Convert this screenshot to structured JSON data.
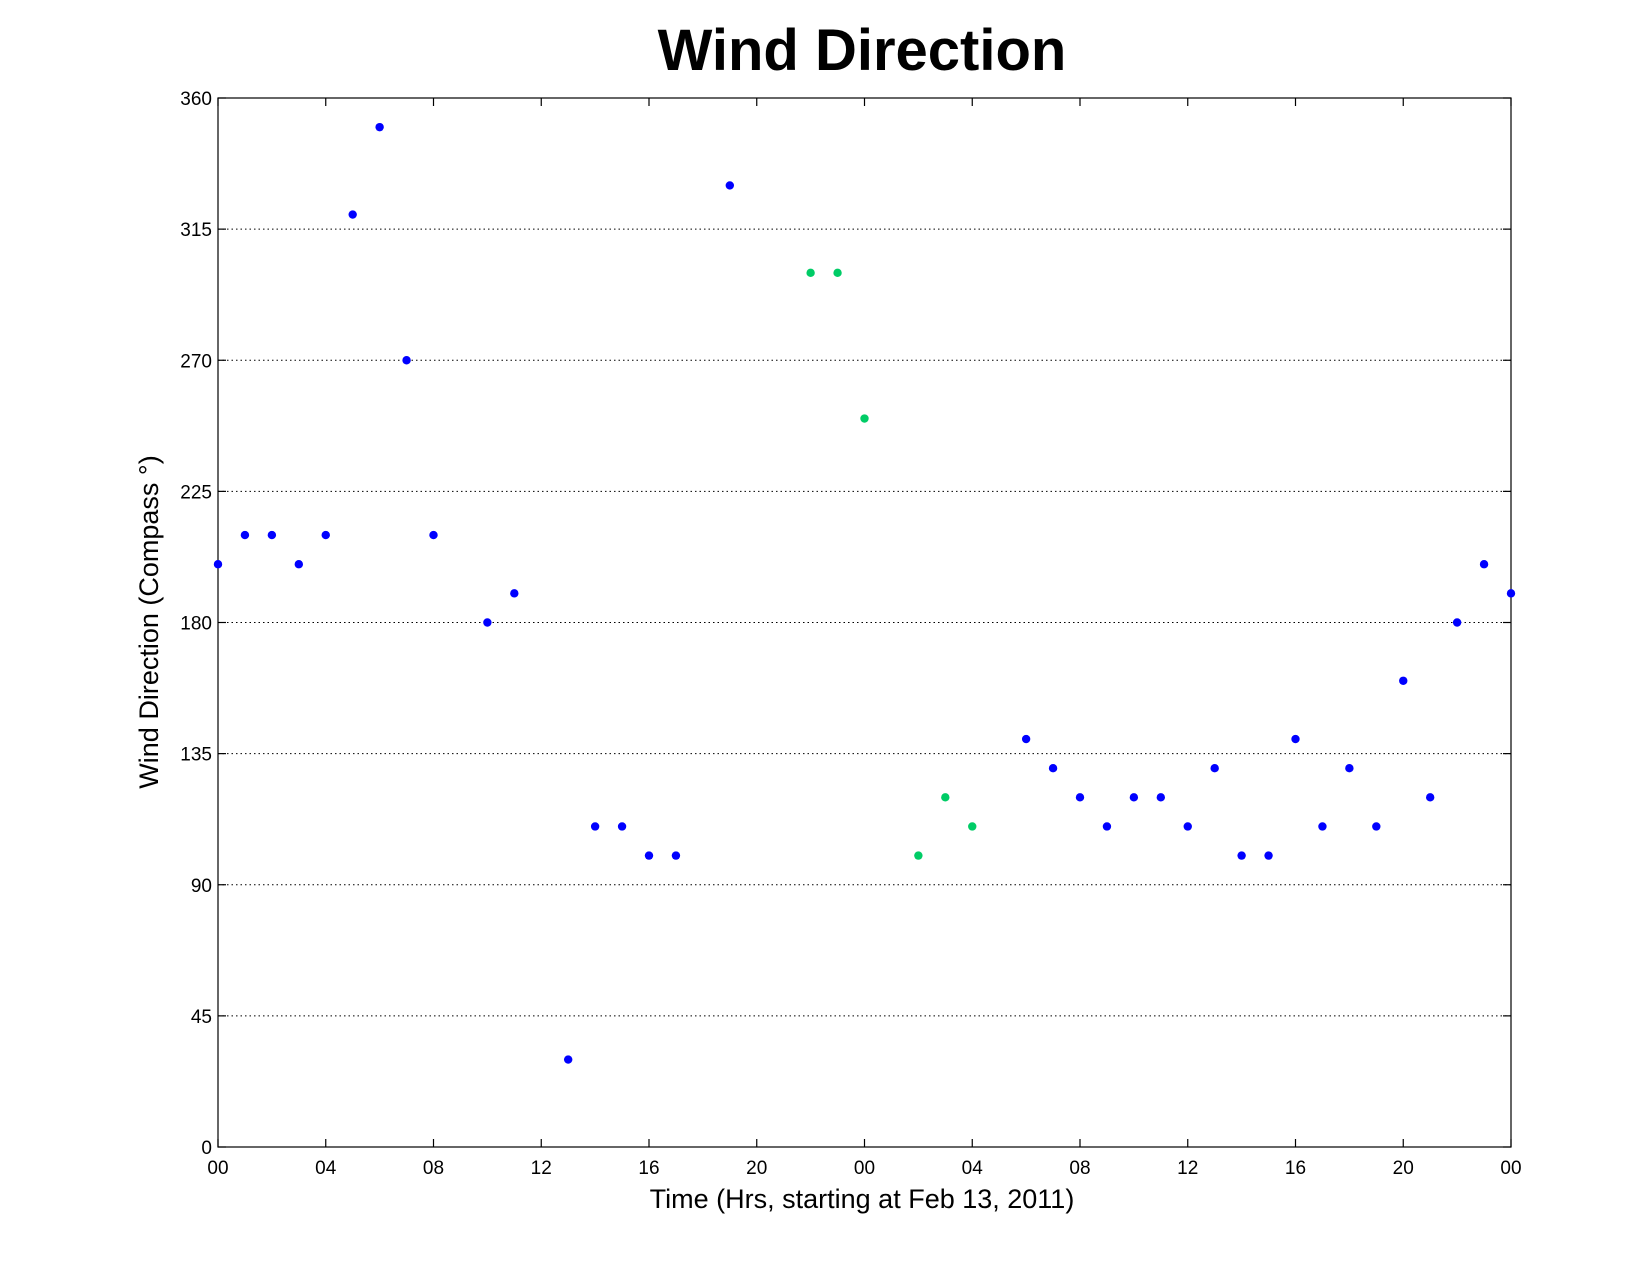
{
  "chart_data": {
    "type": "scatter",
    "title": "Wind Direction",
    "xlabel": "Time (Hrs, starting at Feb 13, 2011)",
    "ylabel": "Wind Direction (Compass  °)",
    "xlim": [
      0,
      48
    ],
    "ylim": [
      0,
      360
    ],
    "x_ticks": [
      {
        "value": 0,
        "label": "00"
      },
      {
        "value": 4,
        "label": "04"
      },
      {
        "value": 8,
        "label": "08"
      },
      {
        "value": 12,
        "label": "12"
      },
      {
        "value": 16,
        "label": "16"
      },
      {
        "value": 20,
        "label": "20"
      },
      {
        "value": 24,
        "label": "00"
      },
      {
        "value": 28,
        "label": "04"
      },
      {
        "value": 32,
        "label": "08"
      },
      {
        "value": 36,
        "label": "12"
      },
      {
        "value": 40,
        "label": "16"
      },
      {
        "value": 44,
        "label": "20"
      },
      {
        "value": 48,
        "label": "00"
      }
    ],
    "y_ticks": [
      0,
      45,
      90,
      135,
      180,
      225,
      270,
      315,
      360
    ],
    "grid": "horizontal dotted",
    "series": [
      {
        "color": "#0000ff",
        "points": [
          [
            0,
            200
          ],
          [
            1,
            210
          ],
          [
            2,
            210
          ],
          [
            3,
            200
          ],
          [
            4,
            210
          ],
          [
            5,
            320
          ],
          [
            6,
            350
          ],
          [
            7,
            270
          ],
          [
            8,
            210
          ],
          [
            10,
            180
          ],
          [
            11,
            190
          ],
          [
            13,
            30
          ],
          [
            14,
            110
          ],
          [
            15,
            110
          ],
          [
            16,
            100
          ],
          [
            17,
            100
          ],
          [
            19,
            330
          ],
          [
            30,
            140
          ],
          [
            31,
            130
          ],
          [
            32,
            120
          ],
          [
            33,
            110
          ],
          [
            34,
            120
          ],
          [
            35,
            120
          ],
          [
            36,
            110
          ],
          [
            37,
            130
          ],
          [
            38,
            100
          ],
          [
            39,
            100
          ],
          [
            40,
            140
          ],
          [
            41,
            110
          ],
          [
            42,
            130
          ],
          [
            43,
            110
          ],
          [
            44,
            160
          ],
          [
            45,
            120
          ],
          [
            46,
            180
          ],
          [
            47,
            200
          ],
          [
            48,
            190
          ]
        ]
      },
      {
        "color": "#00cc66",
        "points": [
          [
            22,
            300
          ],
          [
            23,
            300
          ],
          [
            24,
            250
          ],
          [
            26,
            100
          ],
          [
            27,
            120
          ],
          [
            28,
            110
          ]
        ]
      }
    ]
  }
}
